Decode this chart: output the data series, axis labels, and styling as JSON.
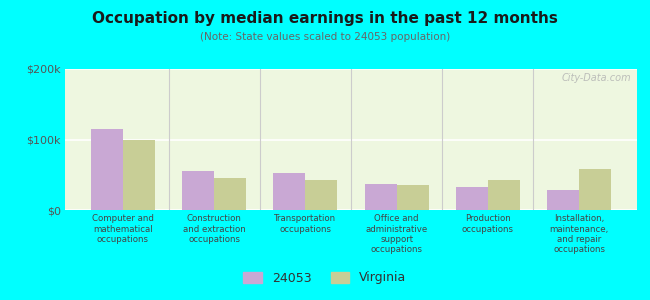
{
  "title": "Occupation by median earnings in the past 12 months",
  "subtitle": "(Note: State values scaled to 24053 population)",
  "categories": [
    "Computer and\nmathematical\noccupations",
    "Construction\nand extraction\noccupations",
    "Transportation\noccupations",
    "Office and\nadministrative\nsupport\noccupations",
    "Production\noccupations",
    "Installation,\nmaintenance,\nand repair\noccupations"
  ],
  "values_24053": [
    115000,
    55000,
    52000,
    37000,
    33000,
    28000
  ],
  "values_virginia": [
    100000,
    45000,
    43000,
    36000,
    42000,
    58000
  ],
  "color_24053": "#c9a8d4",
  "color_virginia": "#c8ce96",
  "background_color": "#00ffff",
  "plot_bg": "#eef7e0",
  "ylim": [
    0,
    200000
  ],
  "yticks": [
    0,
    100000,
    200000
  ],
  "ytick_labels": [
    "$0",
    "$100k",
    "$200k"
  ],
  "legend_label_24053": "24053",
  "legend_label_virginia": "Virginia",
  "bar_width": 0.35,
  "watermark": "City-Data.com"
}
